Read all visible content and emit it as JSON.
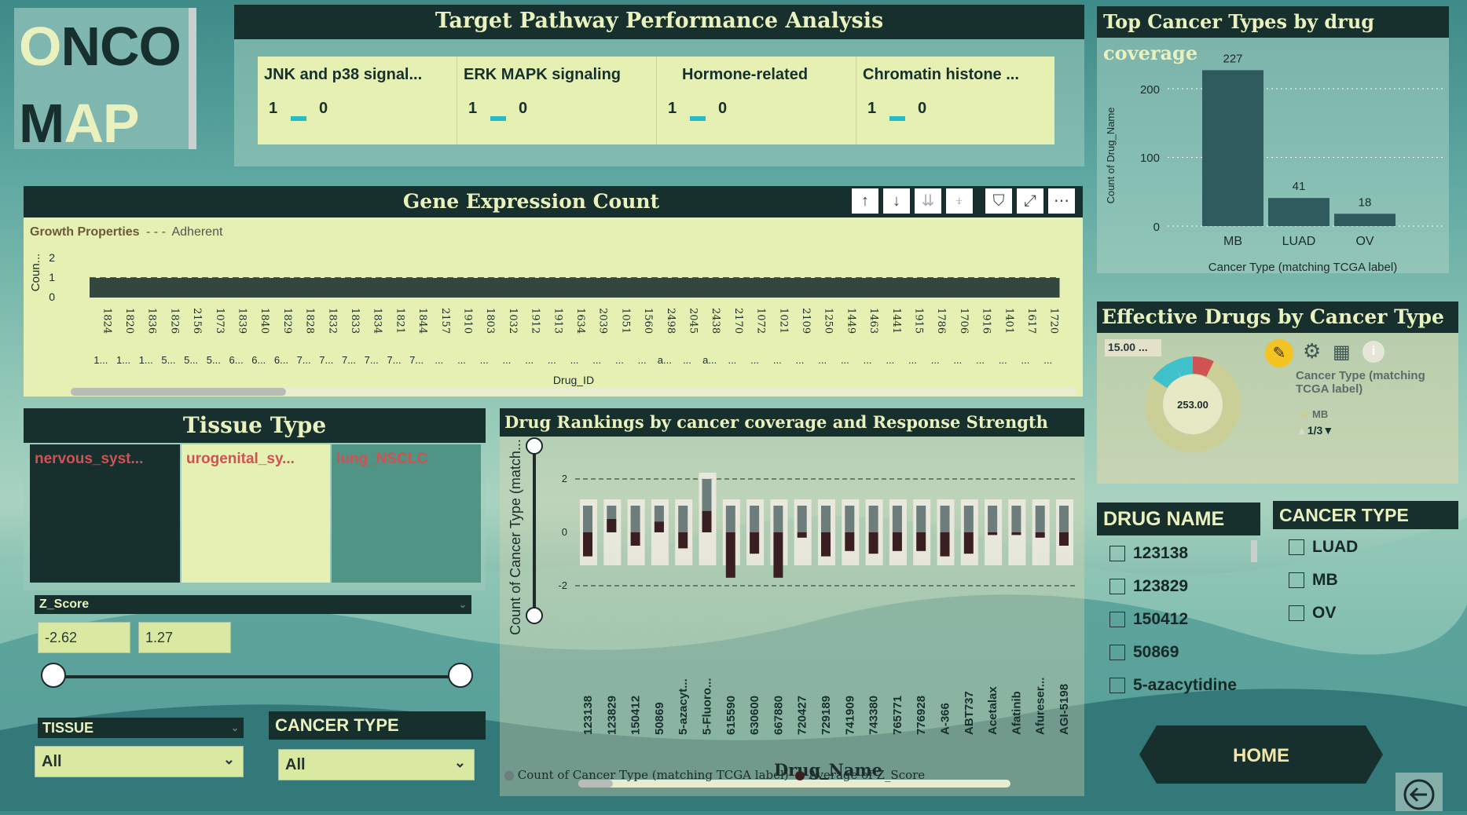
{
  "brand": {
    "line1_accent": "O",
    "line1_rest": "NCO",
    "line2_first": "M",
    "line2_accent": "AP"
  },
  "pathway": {
    "title": "Target Pathway Performance Analysis",
    "cards": [
      {
        "label": "JNK and p38 signal...",
        "left_value": "1",
        "right_value": "0"
      },
      {
        "label": "ERK MAPK signaling",
        "left_value": "1",
        "right_value": "0"
      },
      {
        "label": "Hormone-related",
        "left_value": "1",
        "right_value": "0"
      },
      {
        "label": "Chromatin histone ...",
        "left_value": "1",
        "right_value": "0"
      }
    ]
  },
  "gene": {
    "title": "Gene Expression Count",
    "legend_title": "Growth Properties",
    "legend_item": "Adherent",
    "y_axis_label": "Coun...",
    "x_axis_label": "Drug_ID",
    "y_ticks": [
      "2",
      "1",
      "0"
    ],
    "ids": [
      "1824",
      "1820",
      "1836",
      "1826",
      "2156",
      "1073",
      "1839",
      "1840",
      "1829",
      "1828",
      "1832",
      "1833",
      "1834",
      "1821",
      "1844",
      "2157",
      "1910",
      "1803",
      "1032",
      "1912",
      "1913",
      "1634",
      "2039",
      "1051",
      "1560",
      "2498",
      "2045",
      "2438",
      "2170",
      "1072",
      "1021",
      "2109",
      "1250",
      "1449",
      "1463",
      "1441",
      "1915",
      "1786",
      "1706",
      "1916",
      "1401",
      "1617",
      "1720"
    ],
    "sub": [
      "1...",
      "1...",
      "1...",
      "5...",
      "5...",
      "5...",
      "6...",
      "6...",
      "6...",
      "7...",
      "7...",
      "7...",
      "7...",
      "7...",
      "7...",
      "...",
      "...",
      "...",
      "...",
      "...",
      "...",
      "...",
      "...",
      "...",
      "...",
      "a...",
      "...",
      "a...",
      "...",
      "...",
      "...",
      "...",
      "...",
      "...",
      "...",
      "...",
      "...",
      "...",
      "...",
      "...",
      "...",
      "...",
      "..."
    ],
    "toolbar": [
      "↑",
      "↓",
      "⇊",
      "⍖",
      "⛉",
      "⤢",
      "⋯"
    ]
  },
  "top_cancer": {
    "title": "Top Cancer Types by drug coverage",
    "y_axis_label": "Count of Drug_Name",
    "x_axis_label": "Cancer Type (matching TCGA label)",
    "y_ticks": [
      "200",
      "100",
      "0"
    ]
  },
  "effective": {
    "title": "Effective Drugs by Cancer Type",
    "tooltip_value": "15.00 ...",
    "center_value": "253.00",
    "legend_title": "Cancer Type (matching TCGA label)",
    "legend_item": "MB",
    "pager": "1/3",
    "donut": {
      "accent_color": "#3fc1cc",
      "red_color": "#d05252"
    }
  },
  "tissue": {
    "title": "Tissue Type",
    "tiles": [
      {
        "label": "nervous_syst...",
        "color": "#17302e"
      },
      {
        "label": "urogenital_sy...",
        "color": "#e6f0b2"
      },
      {
        "label": "lung_NSCLC",
        "color": "#4f9484"
      }
    ]
  },
  "zscore": {
    "label": "Z_Score",
    "min": "-2.62",
    "max": "1.27"
  },
  "filters": {
    "tissue_label": "TISSUE",
    "tissue_value": "All",
    "cancer_label": "CANCER TYPE",
    "cancer_value": "All"
  },
  "rankings": {
    "title": "Drug Rankings by cancer coverage and Response Strength",
    "y_axis_label": "Count of Cancer Type (match...",
    "x_axis_label": "Drug_Name",
    "y_ticks": [
      "2",
      "0",
      "-2"
    ],
    "legend": [
      "Count of Cancer Type (matching TCGA label)",
      "Average of Z_Score"
    ]
  },
  "drug_name": {
    "title": "DRUG NAME",
    "items": [
      "123138",
      "123829",
      "150412",
      "50869",
      "5-azacytidine"
    ]
  },
  "cancer_type": {
    "title": "CANCER TYPE",
    "items": [
      "LUAD",
      "MB",
      "OV"
    ]
  },
  "home_button": "HOME",
  "chart_data": [
    {
      "type": "bar",
      "title": "Top Cancer Types by drug coverage",
      "categories": [
        "MB",
        "LUAD",
        "OV"
      ],
      "values": [
        227,
        41,
        18
      ],
      "xlabel": "Cancer Type (matching TCGA label)",
      "ylabel": "Count of Drug_Name",
      "ylim": [
        0,
        240
      ],
      "grid": true
    },
    {
      "type": "bar",
      "title": "Gene Expression Count",
      "x": [
        "1824",
        "1820",
        "1836",
        "1826",
        "2156",
        "1073",
        "1839",
        "1840",
        "1829",
        "1828",
        "1832",
        "1833",
        "1834",
        "1821",
        "1844",
        "2157",
        "1910",
        "1803",
        "1032",
        "1912",
        "1913",
        "1634",
        "2039",
        "1051",
        "1560",
        "2498",
        "2045",
        "2438",
        "2170",
        "1072",
        "1021",
        "2109",
        "1250",
        "1449",
        "1463",
        "1441",
        "1915",
        "1786",
        "1706",
        "1916",
        "1401",
        "1617",
        "1720"
      ],
      "series": [
        {
          "name": "Adherent",
          "values": [
            1,
            1,
            1,
            1,
            1,
            1,
            1,
            1,
            1,
            1,
            1,
            1,
            1,
            1,
            1,
            1,
            1,
            1,
            1,
            1,
            1,
            1,
            1,
            1,
            1,
            1,
            1,
            1,
            1,
            1,
            1,
            1,
            1,
            1,
            1,
            1,
            1,
            1,
            1,
            1,
            1,
            1,
            1
          ]
        }
      ],
      "xlabel": "Drug_ID",
      "ylabel": "Coun...",
      "ylim": [
        0,
        2
      ]
    },
    {
      "type": "bar",
      "title": "Drug Rankings by cancer coverage and Response Strength",
      "categories": [
        "123138",
        "123829",
        "150412",
        "50869",
        "5-azacyt...",
        "5-Fluoro...",
        "615590",
        "630600",
        "667880",
        "720427",
        "729189",
        "741909",
        "743380",
        "765771",
        "776928",
        "A-366",
        "ABT737",
        "Acetalax",
        "Afatinib",
        "Afureser...",
        "AGI-5198"
      ],
      "series": [
        {
          "name": "Count of Cancer Type (matching TCGA label)",
          "values": [
            1,
            1,
            1,
            1,
            1,
            2,
            1,
            1,
            1,
            1,
            1,
            1,
            1,
            1,
            1,
            1,
            1,
            1,
            1,
            1,
            1
          ]
        },
        {
          "name": "Average of Z_Score",
          "values": [
            -0.9,
            0.5,
            -0.5,
            0.4,
            -0.6,
            0.8,
            -1.7,
            -0.8,
            -1.7,
            -0.2,
            -0.9,
            -0.7,
            -0.8,
            -0.7,
            -0.7,
            -0.9,
            -0.8,
            -0.1,
            -0.1,
            -0.2,
            -0.5
          ]
        }
      ],
      "xlabel": "Drug_Name",
      "ylabel": "Count of Cancer Type (match...",
      "ylim": [
        -2,
        2
      ],
      "grid": true,
      "legend": "bottom-left"
    },
    {
      "type": "pie",
      "title": "Effective Drugs by Cancer Type",
      "labels": [
        "MB"
      ],
      "center_total": 253,
      "tooltip": "15.00 ...",
      "legend": "right"
    }
  ]
}
